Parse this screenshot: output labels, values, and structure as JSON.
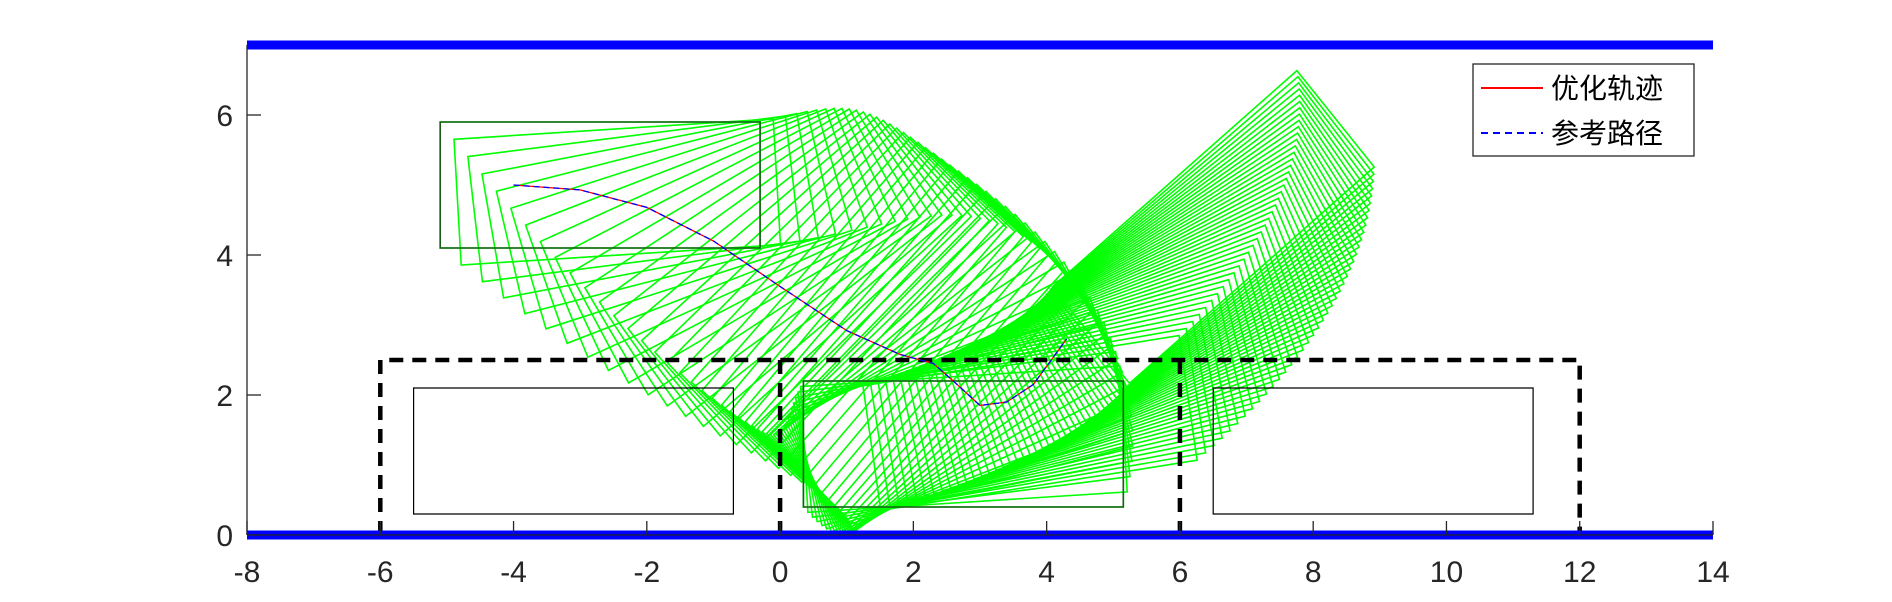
{
  "chart_data": {
    "type": "line",
    "title": "",
    "xlabel": "",
    "ylabel": "",
    "xlim": [
      -8,
      14
    ],
    "ylim": [
      0,
      7
    ],
    "x_ticks": [
      -8,
      -6,
      -4,
      -2,
      0,
      2,
      4,
      6,
      8,
      10,
      12,
      14
    ],
    "y_ticks": [
      0,
      2,
      4,
      6
    ],
    "grid": false,
    "legend_position": "top-right",
    "legend": [
      {
        "label": "优化轨迹",
        "color": "#ff0000",
        "style": "solid"
      },
      {
        "label": "参考路径",
        "color": "#0000ff",
        "style": "dashed"
      }
    ],
    "boundaries": {
      "color": "#0000ff",
      "lines": [
        {
          "x": [
            -8,
            14
          ],
          "y": [
            7,
            7
          ]
        },
        {
          "x": [
            -8,
            14
          ],
          "y": [
            0,
            0
          ]
        }
      ]
    },
    "parking_zone": {
      "color": "#000000",
      "style": "dashed",
      "outline": {
        "x": [
          -6,
          -6,
          12,
          12
        ],
        "y": [
          0,
          2.5,
          2.5,
          0
        ]
      },
      "dividers": [
        0,
        6
      ]
    },
    "parked_vehicles": [
      {
        "corners": [
          [
            -5.5,
            0.3
          ],
          [
            -0.7,
            0.3
          ],
          [
            -0.7,
            2.1
          ],
          [
            -5.5,
            2.1
          ]
        ]
      },
      {
        "corners": [
          [
            6.5,
            0.3
          ],
          [
            11.3,
            0.3
          ],
          [
            11.3,
            2.1
          ],
          [
            6.5,
            2.1
          ]
        ]
      }
    ],
    "ego_vehicle": {
      "color": "#00ff00",
      "length": 4.8,
      "width": 1.8,
      "start_pose": {
        "x": -4.0,
        "y": 5.0,
        "heading_deg": 0
      },
      "end_pose": {
        "x": 2.75,
        "y": 1.3,
        "heading_deg": 0
      }
    },
    "series": [
      {
        "name": "优化轨迹",
        "color": "#ff0000",
        "style": "solid",
        "x": [
          -4.0,
          -3.0,
          -2.0,
          -1.0,
          0.0,
          1.0,
          1.8,
          2.3,
          2.6,
          3.0,
          3.4,
          3.8,
          4.3
        ],
        "y": [
          5.0,
          4.93,
          4.68,
          4.2,
          3.55,
          2.92,
          2.58,
          2.45,
          2.2,
          1.85,
          1.9,
          2.15,
          2.8
        ]
      },
      {
        "name": "参考路径",
        "color": "#0000ff",
        "style": "dashed",
        "x": [
          -4.0,
          -3.0,
          -2.0,
          -1.0,
          0.0,
          1.0,
          1.8,
          2.3,
          2.6,
          3.0,
          3.4,
          3.8,
          4.3
        ],
        "y": [
          5.0,
          4.93,
          4.68,
          4.2,
          3.55,
          2.92,
          2.58,
          2.45,
          2.2,
          1.85,
          1.9,
          2.15,
          2.8
        ]
      }
    ]
  }
}
